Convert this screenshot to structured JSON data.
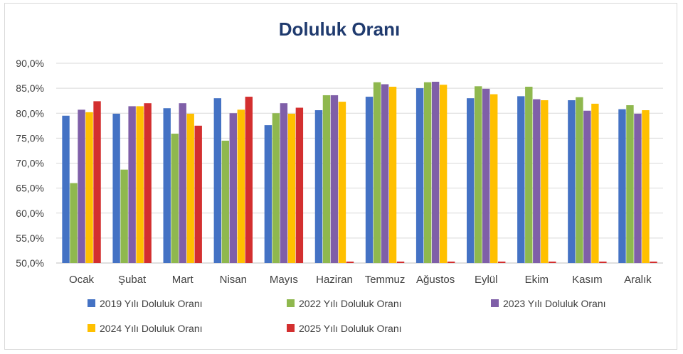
{
  "chart_data": {
    "type": "bar",
    "title": "Doluluk Oranı",
    "xlabel": "",
    "ylabel": "",
    "ylim": [
      50,
      90
    ],
    "yticks": [
      "90,0%",
      "85,0%",
      "80,0%",
      "75,0%",
      "70,0%",
      "65,0%",
      "60,0%",
      "55,0%",
      "50,0%"
    ],
    "grid": true,
    "legend_position": "bottom",
    "categories": [
      "Ocak",
      "Şubat",
      "Mart",
      "Nisan",
      "Mayıs",
      "Haziran",
      "Temmuz",
      "Ağustos",
      "Eylül",
      "Ekim",
      "Kasım",
      "Aralık"
    ],
    "series": [
      {
        "name": "2019 Yılı Doluluk Oranı",
        "color": "#4472C4",
        "values": [
          79.5,
          79.9,
          81.0,
          83.0,
          77.6,
          80.6,
          83.3,
          85.0,
          83.0,
          83.4,
          82.6,
          80.8
        ]
      },
      {
        "name": "2022 Yılı Doluluk Oranı",
        "color": "#8FB84E",
        "values": [
          66.0,
          68.7,
          75.9,
          74.5,
          80.0,
          83.6,
          86.2,
          86.2,
          85.4,
          85.3,
          83.2,
          81.6
        ]
      },
      {
        "name": "2023 Yılı Doluluk Oranı",
        "color": "#7F5FA8",
        "values": [
          80.7,
          81.4,
          82.0,
          80.0,
          82.0,
          83.6,
          85.8,
          86.3,
          84.9,
          82.8,
          80.5,
          79.9
        ]
      },
      {
        "name": "2024 Yılı Doluluk Oranı",
        "color": "#FFC000",
        "values": [
          80.2,
          81.4,
          79.9,
          80.7,
          79.9,
          82.3,
          85.3,
          85.7,
          83.8,
          82.6,
          81.9,
          80.6
        ]
      },
      {
        "name": "2025 Yılı Doluluk Oranı",
        "color": "#D32F2F",
        "values": [
          82.4,
          82.0,
          77.5,
          83.3,
          81.1,
          null,
          null,
          null,
          null,
          null,
          null,
          null
        ]
      }
    ]
  }
}
